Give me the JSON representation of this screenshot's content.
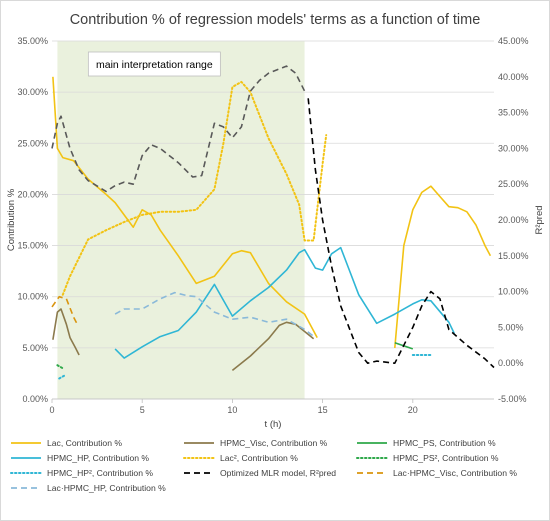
{
  "chart_data": {
    "type": "line",
    "title": "Contribution % of regression models' terms as a function of time",
    "xlabel": "t (h)",
    "ylabel": "Contribution %",
    "y2label": "R²pred",
    "xlim": [
      0,
      24.5
    ],
    "ylim": [
      0,
      35
    ],
    "y2lim": [
      -5,
      45
    ],
    "xticks": [
      0,
      5,
      10,
      15,
      20
    ],
    "yticks": [
      "0.00%",
      "5.00%",
      "10.00%",
      "15.00%",
      "20.00%",
      "25.00%",
      "30.00%",
      "35.00%"
    ],
    "y2ticks": [
      "-5.00%",
      "0.00%",
      "5.00%",
      "10.00%",
      "15.00%",
      "20.00%",
      "25.00%",
      "30.00%",
      "35.00%",
      "40.00%",
      "45.00%"
    ],
    "grid": "horizontal",
    "legend_position": "bottom",
    "shaded_region": {
      "x": [
        0.3,
        14.0
      ],
      "label": "main interpretation range",
      "color": "#eaf1dd"
    },
    "series": [
      {
        "name": "Lac, Contribution %",
        "axis": "left",
        "color": "#f2c314",
        "dash": "solid",
        "segments": [
          [
            [
              0.05,
              31.5
            ],
            [
              0.3,
              24.5
            ],
            [
              0.6,
              23.6
            ],
            [
              1.2,
              23.3
            ],
            [
              2,
              21.5
            ],
            [
              3,
              20
            ],
            [
              3.5,
              19.2
            ],
            [
              4.5,
              16.8
            ],
            [
              5,
              18.5
            ],
            [
              5.5,
              18
            ],
            [
              6,
              16.5
            ],
            [
              7,
              14
            ],
            [
              8,
              11.3
            ],
            [
              9,
              12
            ],
            [
              10,
              14.2
            ],
            [
              10.5,
              14.5
            ],
            [
              11,
              14.3
            ],
            [
              12,
              11.3
            ],
            [
              13,
              9.5
            ],
            [
              14,
              8.3
            ],
            [
              14.7,
              6
            ]
          ],
          [
            [
              19,
              5
            ],
            [
              19.5,
              15
            ],
            [
              20,
              18.5
            ],
            [
              20.5,
              20.2
            ],
            [
              21,
              20.8
            ],
            [
              21.5,
              19.8
            ],
            [
              22,
              18.8
            ],
            [
              22.5,
              18.7
            ],
            [
              23,
              18.3
            ],
            [
              23.5,
              17
            ],
            [
              24,
              15
            ],
            [
              24.3,
              14
            ]
          ]
        ]
      },
      {
        "name": "HPMC_Visc, Contribution %",
        "axis": "left",
        "color": "#8b7a4c",
        "dash": "solid",
        "segments": [
          [
            [
              0.05,
              5.8
            ],
            [
              0.3,
              8.5
            ],
            [
              0.5,
              8.8
            ],
            [
              0.8,
              7.3
            ],
            [
              1,
              6
            ],
            [
              1.3,
              5
            ],
            [
              1.5,
              4.3
            ]
          ],
          [
            [
              10,
              2.8
            ],
            [
              11,
              4.2
            ],
            [
              12,
              5.9
            ],
            [
              12.6,
              7.2
            ],
            [
              13,
              7.5
            ],
            [
              13.5,
              7.3
            ],
            [
              14,
              6.6
            ],
            [
              14.5,
              5.9
            ]
          ]
        ]
      },
      {
        "name": "HPMC_PS, Contribution %",
        "axis": "left",
        "color": "#2ea84a",
        "dash": "solid",
        "segments": [
          [
            [
              19,
              5.5
            ],
            [
              20,
              4.9
            ]
          ]
        ]
      },
      {
        "name": "HPMC_HP, Contribution %",
        "axis": "left",
        "color": "#2fb6d5",
        "dash": "solid",
        "segments": [
          [
            [
              3.5,
              4.9
            ],
            [
              4,
              4
            ],
            [
              5,
              5.1
            ],
            [
              6,
              6.1
            ],
            [
              7,
              6.7
            ],
            [
              8,
              8.5
            ],
            [
              9,
              11.2
            ],
            [
              10,
              8.1
            ],
            [
              11,
              9.6
            ],
            [
              12,
              10.9
            ],
            [
              13,
              12.6
            ],
            [
              13.7,
              14.3
            ],
            [
              14,
              14.6
            ],
            [
              14.6,
              12.8
            ],
            [
              15,
              12.6
            ],
            [
              15.5,
              14.2
            ],
            [
              16,
              14.8
            ],
            [
              16.5,
              12.5
            ],
            [
              17,
              10.2
            ],
            [
              18,
              7.4
            ],
            [
              19,
              8.3
            ],
            [
              20,
              9.3
            ],
            [
              20.5,
              9.7
            ],
            [
              21,
              9.6
            ],
            [
              22,
              7.5
            ],
            [
              22.3,
              6.4
            ]
          ]
        ]
      },
      {
        "name": "Lac², Contribution %",
        "axis": "left",
        "color": "#f2c314",
        "dash": "dot",
        "segments": [
          [
            [
              0.6,
              10.2
            ],
            [
              1,
              12
            ],
            [
              2,
              15.6
            ],
            [
              3,
              16.5
            ],
            [
              4,
              17.3
            ],
            [
              5,
              18
            ],
            [
              6,
              18.3
            ],
            [
              7,
              18.3
            ],
            [
              8,
              18.5
            ],
            [
              9,
              20.5
            ],
            [
              9.5,
              25
            ],
            [
              10,
              30.5
            ],
            [
              10.5,
              31
            ],
            [
              11,
              30
            ],
            [
              12,
              25.5
            ],
            [
              13,
              22
            ],
            [
              13.7,
              19
            ],
            [
              14,
              15.5
            ],
            [
              14.5,
              15.5
            ],
            [
              15,
              23
            ],
            [
              15.2,
              25.8
            ]
          ]
        ]
      },
      {
        "name": "HPMC_PS², Contribution %",
        "axis": "left",
        "color": "#2ea84a",
        "dash": "dot",
        "segments": [
          [
            [
              0.3,
              3.3
            ],
            [
              0.6,
              3.0
            ]
          ]
        ]
      },
      {
        "name": "HPMC_HP², Contribution %",
        "axis": "left",
        "color": "#2fb6d5",
        "dash": "dot",
        "segments": [
          [
            [
              0.4,
              2.0
            ],
            [
              0.7,
              2.3
            ]
          ],
          [
            [
              20,
              4.3
            ],
            [
              21,
              4.3
            ]
          ]
        ]
      },
      {
        "name": "Optimized MLR model, R²pred",
        "axis": "right",
        "color": "#000000",
        "dash": "dash",
        "segments": [
          [
            [
              14.2,
              37
            ],
            [
              14.6,
              27
            ],
            [
              15,
              20
            ],
            [
              15.5,
              13.5
            ],
            [
              16,
              8
            ],
            [
              17,
              1.5
            ],
            [
              17.5,
              0
            ],
            [
              18,
              0.3
            ],
            [
              19,
              0
            ],
            [
              19.5,
              2.5
            ],
            [
              20,
              5
            ],
            [
              20.5,
              8
            ],
            [
              21,
              10
            ],
            [
              21.5,
              9
            ],
            [
              22,
              4.7
            ],
            [
              23,
              2.5
            ],
            [
              24,
              0.6
            ],
            [
              24.5,
              -0.6
            ]
          ]
        ]
      },
      {
        "name": "Lac·HPMC_Visc, Contribution %",
        "axis": "left",
        "color": "#d9950f",
        "dash": "dash",
        "segments": [
          [
            [
              0,
              9
            ],
            [
              0.4,
              10
            ],
            [
              0.8,
              9.8
            ],
            [
              1.2,
              8
            ],
            [
              1.4,
              7.3
            ]
          ]
        ]
      },
      {
        "name": "Lac·HPMC_HP, Contribution %",
        "axis": "left",
        "color": "#8ab9d9",
        "dash": "dash",
        "segments": [
          [
            [
              3.5,
              8.3
            ],
            [
              4,
              8.8
            ],
            [
              5,
              8.8
            ],
            [
              6,
              9.8
            ],
            [
              6.8,
              10.4
            ],
            [
              7.5,
              10.1
            ],
            [
              8,
              10
            ],
            [
              9,
              8.5
            ],
            [
              10,
              7.8
            ],
            [
              11,
              8
            ],
            [
              12,
              7.5
            ],
            [
              13,
              7.8
            ],
            [
              14,
              6.8
            ],
            [
              14.6,
              6
            ]
          ]
        ]
      },
      {
        "name": "Optimized MLR model (within range)",
        "axis": "right",
        "color": "#595959",
        "dash": "dash",
        "in_legend": false,
        "segments": [
          [
            [
              0,
              30
            ],
            [
              0.3,
              33.5
            ],
            [
              0.5,
              34.5
            ],
            [
              1,
              30
            ],
            [
              1.5,
              27
            ],
            [
              2,
              25.5
            ],
            [
              3,
              24
            ],
            [
              3.5,
              24.8
            ],
            [
              4,
              25.3
            ],
            [
              4.5,
              25
            ],
            [
              5,
              29
            ],
            [
              5.5,
              30.5
            ],
            [
              6,
              30
            ],
            [
              7,
              28
            ],
            [
              7.8,
              26
            ],
            [
              8.3,
              26.2
            ],
            [
              9,
              33.5
            ],
            [
              9.5,
              33
            ],
            [
              10,
              31.5
            ],
            [
              10.5,
              33
            ],
            [
              11,
              38
            ],
            [
              11.5,
              39.5
            ],
            [
              12,
              40.5
            ],
            [
              12.5,
              41
            ],
            [
              13,
              41.5
            ],
            [
              13.5,
              40.5
            ],
            [
              14,
              38
            ]
          ]
        ]
      }
    ]
  }
}
